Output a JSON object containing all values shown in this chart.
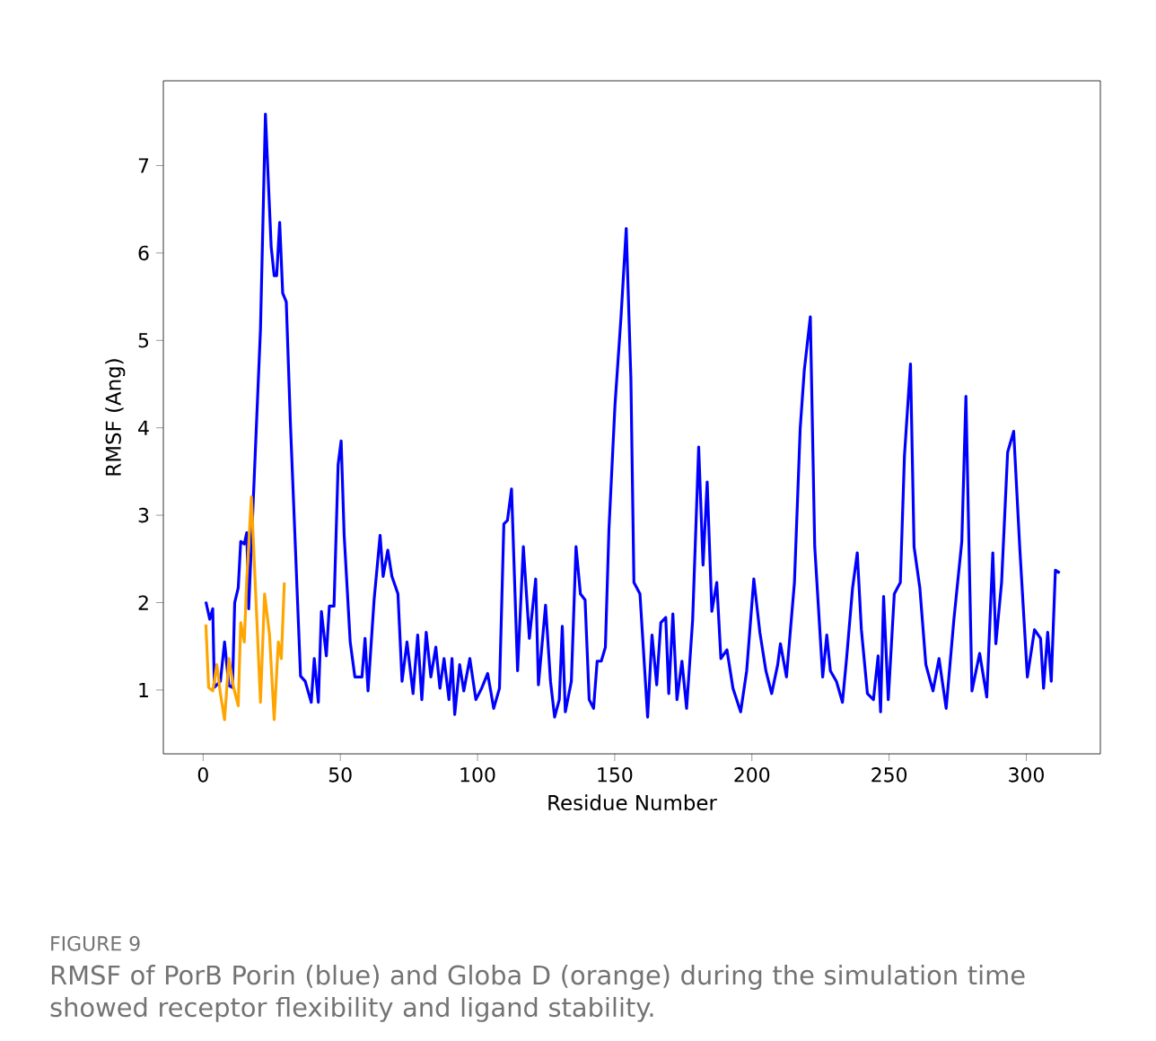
{
  "chart_data": {
    "type": "line",
    "xlabel": "Residue Number",
    "ylabel": "RMSF (Ang)",
    "xlim": [
      -14.5,
      327
    ],
    "ylim": [
      0.27,
      7.97
    ],
    "xticks": [
      0,
      50,
      100,
      150,
      200,
      250,
      300
    ],
    "yticks": [
      1,
      2,
      3,
      4,
      5,
      6,
      7
    ],
    "grid": false,
    "marker": "none",
    "line_style": "solid",
    "annotations": [
      "FIGURE 9",
      "RMSF of PorB Porin (blue) and Globa D (orange) during the simulation time showed receptor flexibility and ligand stability."
    ],
    "series": [
      {
        "color": "#0000ff",
        "x": [
          1,
          2.4,
          3.5,
          4.1,
          6.3,
          7.8,
          9.4,
          10.7,
          11.5,
          12.8,
          13.7,
          15,
          15.9,
          16.6,
          18.1,
          20.9,
          22.7,
          24.8,
          25.9,
          26.8,
          27.9,
          29,
          30.3,
          31.8,
          35.5,
          37.2,
          39.4,
          40.5,
          42,
          43.1,
          44.9,
          46,
          47.7,
          49.2,
          50.3,
          51.4,
          53.6,
          55.3,
          57.9,
          59,
          60.1,
          62.3,
          64.5,
          65.6,
          67.3,
          68.8,
          71,
          72.5,
          74.3,
          76.5,
          78.2,
          79.7,
          81.3,
          83,
          84.8,
          86.3,
          87.8,
          89.6,
          90.7,
          91.7,
          93.5,
          95,
          97.2,
          99.4,
          101.5,
          103.7,
          105.9,
          108,
          109.6,
          110.9,
          112.4,
          114.6,
          116.7,
          118.9,
          121.2,
          122.2,
          124.8,
          126.6,
          128.1,
          129.8,
          130.9,
          132,
          134.2,
          135.9,
          137.5,
          139.2,
          140.7,
          142.3,
          143.6,
          145.1,
          146.6,
          147.9,
          150.1,
          152.3,
          154.2,
          155.9,
          157,
          159.2,
          162,
          163.6,
          165.3,
          166.8,
          168.6,
          169.7,
          171.2,
          172.7,
          174.5,
          176.2,
          178.4,
          180.6,
          182.2,
          183.7,
          185.4,
          187.2,
          188.7,
          190.9,
          193.1,
          195.9,
          198.1,
          200.7,
          202.9,
          205.1,
          207.2,
          209.4,
          210.4,
          212.6,
          215.5,
          217.6,
          219.1,
          221.3,
          222.9,
          225.8,
          227.3,
          228.6,
          230.8,
          233,
          234.5,
          236.7,
          238.4,
          239.9,
          242.1,
          244.3,
          246,
          246.9,
          248,
          249.7,
          251.9,
          254.1,
          255.6,
          257.8,
          259.1,
          261.2,
          263.4,
          266,
          268.2,
          270.8,
          273.6,
          276.5,
          278,
          280.2,
          283,
          285.6,
          287.8,
          288.9,
          291,
          293.2,
          295.4,
          297.6,
          300.4,
          303,
          305.2,
          306.3,
          307.8,
          309.1,
          310.6,
          312.2
        ],
        "values": [
          2.01,
          1.81,
          1.93,
          1.03,
          1.1,
          1.55,
          1.05,
          1.03,
          2.0,
          2.17,
          2.7,
          2.67,
          2.8,
          1.93,
          3.04,
          5.13,
          7.59,
          6.07,
          5.74,
          5.74,
          6.35,
          5.54,
          5.44,
          4.06,
          1.16,
          1.1,
          0.86,
          1.36,
          0.86,
          1.9,
          1.39,
          1.96,
          1.96,
          3.58,
          3.85,
          2.77,
          1.55,
          1.15,
          1.15,
          1.59,
          0.99,
          2.03,
          2.77,
          2.3,
          2.6,
          2.3,
          2.1,
          1.1,
          1.55,
          0.96,
          1.63,
          0.89,
          1.66,
          1.15,
          1.49,
          1.02,
          1.36,
          0.89,
          1.36,
          0.72,
          1.29,
          0.99,
          1.36,
          0.89,
          1.02,
          1.19,
          0.79,
          1.02,
          2.9,
          2.94,
          3.3,
          1.22,
          2.64,
          1.59,
          2.27,
          1.06,
          1.97,
          1.1,
          0.69,
          0.89,
          1.73,
          0.75,
          1.1,
          2.64,
          2.1,
          2.03,
          0.89,
          0.79,
          1.33,
          1.33,
          1.49,
          2.84,
          4.26,
          5.27,
          6.28,
          4.56,
          2.23,
          2.1,
          0.69,
          1.63,
          1.06,
          1.77,
          1.83,
          0.96,
          1.87,
          0.89,
          1.33,
          0.79,
          1.8,
          3.78,
          2.43,
          3.38,
          1.9,
          2.23,
          1.36,
          1.46,
          1.02,
          0.75,
          1.22,
          2.27,
          1.66,
          1.22,
          0.96,
          1.29,
          1.53,
          1.15,
          2.23,
          3.99,
          4.66,
          5.27,
          2.64,
          1.15,
          1.63,
          1.22,
          1.1,
          0.86,
          1.36,
          2.17,
          2.57,
          1.69,
          0.96,
          0.89,
          1.39,
          0.75,
          2.07,
          0.89,
          2.1,
          2.23,
          3.68,
          4.73,
          2.64,
          2.17,
          1.29,
          0.99,
          1.36,
          0.79,
          1.8,
          2.7,
          4.36,
          0.99,
          1.42,
          0.92,
          2.57,
          1.53,
          2.23,
          3.72,
          3.96,
          2.64,
          1.15,
          1.69,
          1.59,
          1.02,
          1.66,
          1.1,
          2.37,
          2.34
        ]
      },
      {
        "color": "#ffa500",
        "x": [
          1,
          2,
          3.5,
          5,
          6.3,
          7.8,
          9.4,
          11.1,
          12.8,
          13.7,
          15,
          15.9,
          17.6,
          19.4,
          20.9,
          22.4,
          24.2,
          25.9,
          27.4,
          28.5,
          29.6
        ],
        "values": [
          1.75,
          1.03,
          0.99,
          1.29,
          0.96,
          0.66,
          1.36,
          1.03,
          0.82,
          1.77,
          1.55,
          2.27,
          3.21,
          1.93,
          0.86,
          2.1,
          1.63,
          0.66,
          1.55,
          1.36,
          2.23
        ]
      }
    ]
  }
}
